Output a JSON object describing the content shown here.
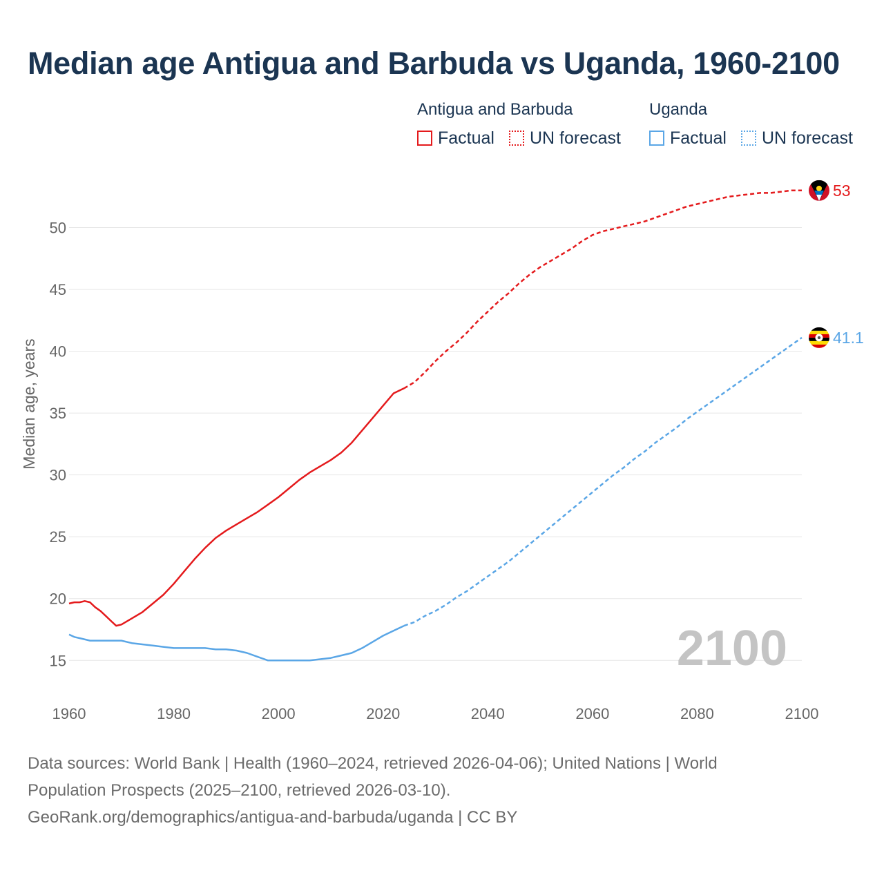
{
  "title": "Median age Antigua and Barbuda vs Uganda, 1960-2100",
  "legend": {
    "groups": [
      {
        "name": "Antigua and Barbuda",
        "color": "#e41a1c",
        "items": [
          "Factual",
          "UN forecast"
        ]
      },
      {
        "name": "Uganda",
        "color": "#5aa6e6",
        "items": [
          "Factual",
          "UN forecast"
        ]
      }
    ]
  },
  "year_label": "2100",
  "source": {
    "line1": "Data sources: World Bank | Health (1960–2024, retrieved 2026-04-06); United Nations | World",
    "line2": "Population Prospects (2025–2100, retrieved 2026-03-10).",
    "line3": "GeoRank.org/demographics/antigua-and-barbuda/uganda | CC BY"
  },
  "chart_data": {
    "type": "line",
    "title": "Median age Antigua and Barbuda vs Uganda, 1960-2100",
    "xlabel": "",
    "ylabel": "Median age, years",
    "xlim": [
      1960,
      2100
    ],
    "ylim": [
      12,
      55
    ],
    "xticks": [
      1960,
      1980,
      2000,
      2020,
      2040,
      2060,
      2080,
      2100
    ],
    "yticks": [
      15,
      20,
      25,
      30,
      35,
      40,
      45,
      50
    ],
    "grid": true,
    "forecast_start": 2024,
    "series": [
      {
        "name": "Antigua and Barbuda",
        "color": "#e41a1c",
        "end_label": "53",
        "x": [
          1960,
          1961,
          1962,
          1963,
          1964,
          1965,
          1966,
          1967,
          1968,
          1969,
          1970,
          1972,
          1974,
          1976,
          1978,
          1980,
          1982,
          1984,
          1986,
          1988,
          1990,
          1992,
          1994,
          1996,
          1998,
          2000,
          2002,
          2004,
          2006,
          2008,
          2010,
          2012,
          2014,
          2016,
          2018,
          2020,
          2022,
          2024,
          2026,
          2028,
          2030,
          2032,
          2034,
          2036,
          2038,
          2040,
          2042,
          2044,
          2046,
          2048,
          2050,
          2052,
          2054,
          2056,
          2058,
          2060,
          2062,
          2064,
          2066,
          2068,
          2070,
          2072,
          2074,
          2076,
          2078,
          2080,
          2082,
          2084,
          2086,
          2088,
          2090,
          2092,
          2094,
          2096,
          2098,
          2100
        ],
        "y": [
          19.6,
          19.7,
          19.7,
          19.8,
          19.7,
          19.3,
          19.0,
          18.6,
          18.2,
          17.8,
          17.9,
          18.4,
          18.9,
          19.6,
          20.3,
          21.2,
          22.2,
          23.2,
          24.1,
          24.9,
          25.5,
          26.0,
          26.5,
          27.0,
          27.6,
          28.2,
          28.9,
          29.6,
          30.2,
          30.7,
          31.2,
          31.8,
          32.6,
          33.6,
          34.6,
          35.6,
          36.6,
          37.0,
          37.5,
          38.3,
          39.2,
          40.0,
          40.7,
          41.5,
          42.4,
          43.2,
          44.0,
          44.7,
          45.5,
          46.2,
          46.8,
          47.3,
          47.8,
          48.3,
          48.9,
          49.4,
          49.7,
          49.9,
          50.1,
          50.3,
          50.5,
          50.8,
          51.1,
          51.4,
          51.7,
          51.9,
          52.1,
          52.3,
          52.5,
          52.6,
          52.7,
          52.8,
          52.8,
          52.9,
          53.0,
          53.0
        ]
      },
      {
        "name": "Uganda",
        "color": "#5aa6e6",
        "end_label": "41.1",
        "x": [
          1960,
          1961,
          1962,
          1964,
          1966,
          1968,
          1970,
          1972,
          1974,
          1976,
          1978,
          1980,
          1982,
          1984,
          1986,
          1988,
          1990,
          1992,
          1994,
          1996,
          1998,
          2000,
          2002,
          2004,
          2006,
          2008,
          2010,
          2012,
          2014,
          2016,
          2018,
          2020,
          2022,
          2024,
          2026,
          2028,
          2030,
          2032,
          2034,
          2036,
          2038,
          2040,
          2042,
          2044,
          2046,
          2048,
          2050,
          2052,
          2054,
          2056,
          2058,
          2060,
          2062,
          2064,
          2066,
          2068,
          2070,
          2072,
          2074,
          2076,
          2078,
          2080,
          2082,
          2084,
          2086,
          2088,
          2090,
          2092,
          2094,
          2096,
          2098,
          2100
        ],
        "y": [
          17.1,
          16.9,
          16.8,
          16.6,
          16.6,
          16.6,
          16.6,
          16.4,
          16.3,
          16.2,
          16.1,
          16.0,
          16.0,
          16.0,
          16.0,
          15.9,
          15.9,
          15.8,
          15.6,
          15.3,
          15.0,
          15.0,
          15.0,
          15.0,
          15.0,
          15.1,
          15.2,
          15.4,
          15.6,
          16.0,
          16.5,
          17.0,
          17.4,
          17.8,
          18.1,
          18.6,
          19.0,
          19.5,
          20.1,
          20.6,
          21.2,
          21.8,
          22.4,
          23.0,
          23.7,
          24.4,
          25.1,
          25.8,
          26.5,
          27.2,
          27.9,
          28.6,
          29.3,
          30.0,
          30.6,
          31.3,
          31.9,
          32.6,
          33.2,
          33.8,
          34.5,
          35.1,
          35.7,
          36.3,
          36.9,
          37.5,
          38.1,
          38.7,
          39.3,
          39.9,
          40.5,
          41.1
        ]
      }
    ]
  }
}
